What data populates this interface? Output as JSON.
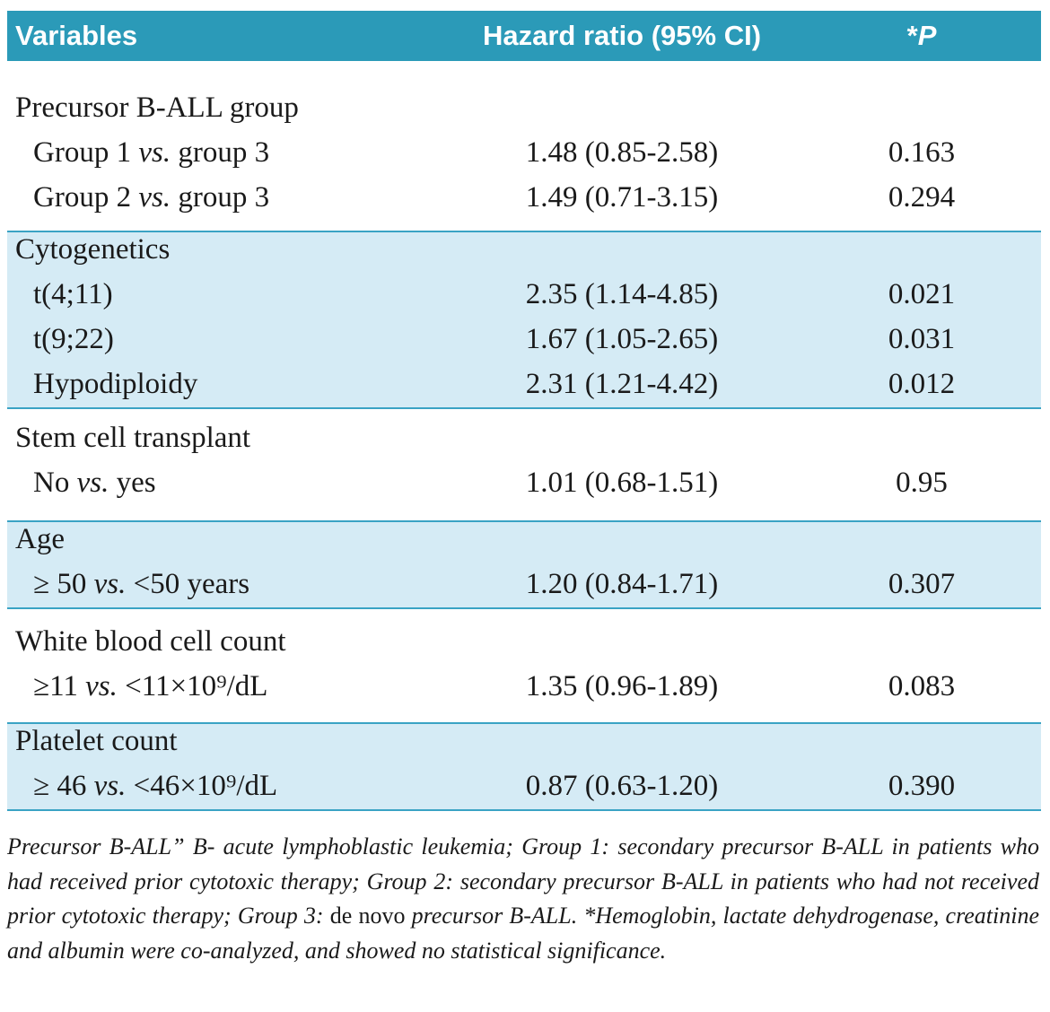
{
  "header": {
    "columns": [
      [
        {
          "text": "Variables"
        }
      ],
      [
        {
          "text": "Hazard ratio (95% CI)"
        }
      ],
      [
        {
          "text": "*"
        },
        {
          "text": "P",
          "italic": true
        }
      ]
    ]
  },
  "groups": [
    {
      "title": "Precursor B-ALL group",
      "rows": [
        {
          "label": [
            {
              "text": "Group 1 "
            },
            {
              "text": "vs.",
              "italic": true
            },
            {
              "text": " group 3"
            }
          ],
          "hr": "1.48 (0.85-2.58)",
          "p": "0.163"
        },
        {
          "label": [
            {
              "text": "Group 2 "
            },
            {
              "text": "vs.",
              "italic": true
            },
            {
              "text": " group 3"
            }
          ],
          "hr": "1.49 (0.71-3.15)",
          "p": "0.294"
        }
      ]
    },
    {
      "title": "Cytogenetics",
      "rows": [
        {
          "label": [
            {
              "text": "t(4;11)"
            }
          ],
          "hr": "2.35 (1.14-4.85)",
          "p": "0.021"
        },
        {
          "label": [
            {
              "text": "t(9;22)"
            }
          ],
          "hr": "1.67 (1.05-2.65)",
          "p": "0.031"
        },
        {
          "label": [
            {
              "text": "Hypodiploidy"
            }
          ],
          "hr": "2.31 (1.21-4.42)",
          "p": "0.012"
        }
      ]
    },
    {
      "title": "Stem cell transplant",
      "rows": [
        {
          "label": [
            {
              "text": "No "
            },
            {
              "text": "vs.",
              "italic": true
            },
            {
              "text": " yes"
            }
          ],
          "hr": "1.01 (0.68-1.51)",
          "p": "0.95"
        }
      ]
    },
    {
      "title": "Age",
      "rows": [
        {
          "label": [
            {
              "text": "≥ 50 "
            },
            {
              "text": "vs.",
              "italic": true
            },
            {
              "text": " <50 years"
            }
          ],
          "hr": "1.20 (0.84-1.71)",
          "p": "0.307"
        }
      ]
    },
    {
      "title": "White blood cell count",
      "rows": [
        {
          "label": [
            {
              "text": "≥11 "
            },
            {
              "text": "vs.",
              "italic": true
            },
            {
              "text": " <11×10⁹/dL"
            }
          ],
          "hr": "1.35 (0.96-1.89)",
          "p": "0.083"
        }
      ]
    },
    {
      "title": "Platelet count",
      "rows": [
        {
          "label": [
            {
              "text": "≥ 46 "
            },
            {
              "text": "vs.",
              "italic": true
            },
            {
              "text": " <46×10⁹/dL"
            }
          ],
          "hr": "0.87 (0.63-1.20)",
          "p": "0.390"
        }
      ]
    }
  ],
  "footnote": [
    {
      "text": "Precursor B-ALL” B- acute lymphoblastic leukemia; Group 1: secondary precursor B-ALL in patients who had received prior cytotoxic therapy; Group 2: secondary precursor B-ALL in patients who had not received prior cytotoxic therapy; Group 3: ",
      "italic": true
    },
    {
      "text": "de novo"
    },
    {
      "text": " precursor B-ALL. *Hemoglobin, lactate dehydrogenase, creatinine and albumin were co-analyzed, and showed no statistical significance.",
      "italic": true
    }
  ]
}
